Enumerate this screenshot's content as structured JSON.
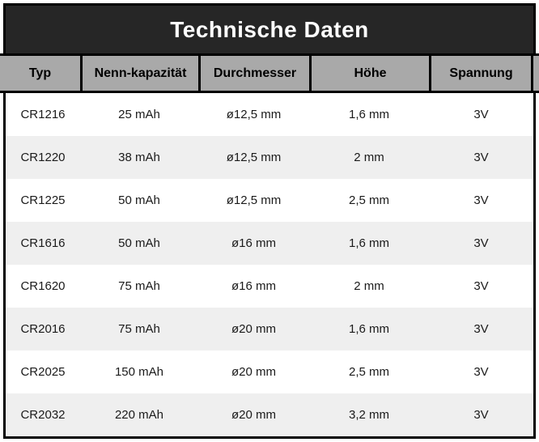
{
  "title": "Technische Daten",
  "chart_data": {
    "type": "table",
    "title": "Technische Daten",
    "columns": [
      "Typ",
      "Nenn-kapazität",
      "Durchmesser",
      "Höhe",
      "Spannung"
    ],
    "rows": [
      [
        "CR1216",
        "25 mAh",
        "ø12,5 mm",
        "1,6 mm",
        "3V"
      ],
      [
        "CR1220",
        "38 mAh",
        "ø12,5 mm",
        "2 mm",
        "3V"
      ],
      [
        "CR1225",
        "50 mAh",
        "ø12,5 mm",
        "2,5 mm",
        "3V"
      ],
      [
        "CR1616",
        "50 mAh",
        "ø16 mm",
        "1,6 mm",
        "3V"
      ],
      [
        "CR1620",
        "75 mAh",
        "ø16 mm",
        "2 mm",
        "3V"
      ],
      [
        "CR2016",
        "75 mAh",
        "ø20 mm",
        "1,6 mm",
        "3V"
      ],
      [
        "CR2025",
        "150 mAh",
        "ø20 mm",
        "2,5 mm",
        "3V"
      ],
      [
        "CR2032",
        "220 mAh",
        "ø20 mm",
        "3,2 mm",
        "3V"
      ]
    ]
  },
  "colors": {
    "title_bar_bg": "#262626",
    "title_text": "#ffffff",
    "header_bg": "#a9a9a9",
    "header_text": "#000000",
    "row_bg": "#ffffff",
    "row_alt_bg": "#efefef",
    "body_text": "#1a1a1a",
    "border": "#000000"
  }
}
